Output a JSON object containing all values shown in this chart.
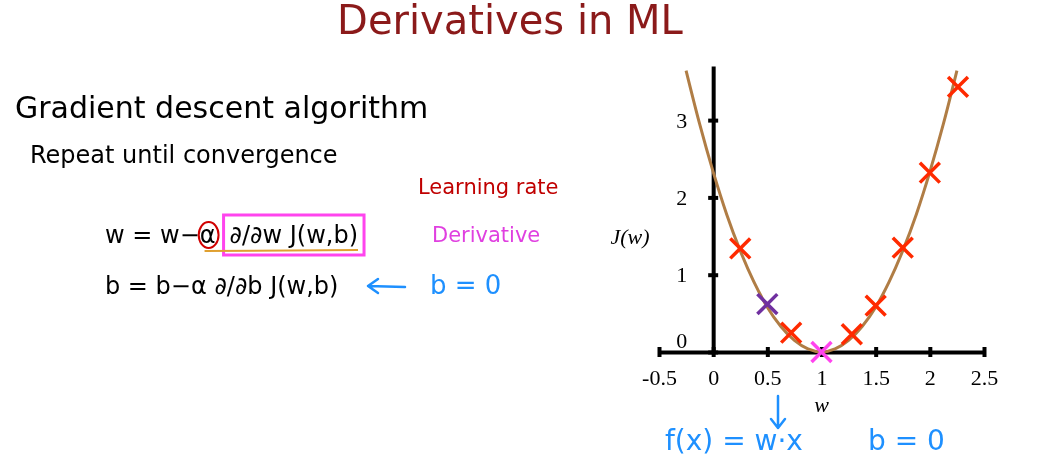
{
  "chart_data": {
    "type": "line",
    "title": "Derivatives in ML",
    "xlabel": "w",
    "ylabel": "J(w)",
    "xlim": [
      -0.5,
      2.5
    ],
    "xticks": [
      -0.5,
      0,
      0.5,
      1,
      1.5,
      2,
      2.5
    ],
    "ylim": [
      0,
      3.7
    ],
    "yticks": [
      0,
      1,
      2,
      3
    ],
    "grid": false,
    "series": [
      {
        "color": "#b07d45",
        "marker": "none",
        "line_style": "solid",
        "x": [
          -0.25,
          -0.125,
          0,
          0.125,
          0.25,
          0.375,
          0.5,
          0.625,
          0.75,
          0.875,
          1,
          1.125,
          1.25,
          1.375,
          1.5,
          1.625,
          1.75,
          1.875,
          2,
          2.125,
          2.25
        ],
        "values": [
          3.64,
          2.95,
          2.33,
          1.78,
          1.31,
          0.91,
          0.58,
          0.33,
          0.15,
          0.04,
          0,
          0.04,
          0.15,
          0.33,
          0.58,
          0.91,
          1.31,
          1.78,
          2.33,
          2.95,
          3.64
        ]
      },
      {
        "type": "scatter",
        "color": "#ff2a00",
        "marker": "cross",
        "x": [
          0.25,
          0.72,
          1.28,
          1.5,
          1.75,
          2,
          2.26
        ],
        "values": [
          1.34,
          0.25,
          0.23,
          0.6,
          1.35,
          2.32,
          3.43
        ]
      },
      {
        "type": "scatter",
        "color": "#7030a0",
        "marker": "cross",
        "x": [
          0.5
        ],
        "values": [
          0.62
        ]
      },
      {
        "type": "scatter",
        "color": "#ff44ee",
        "marker": "cross",
        "x": [
          1
        ],
        "values": [
          0
        ]
      }
    ],
    "annotations": [
      "Gradient descent algorithm",
      "Repeat until convergence",
      "Learning rate",
      "Derivative",
      "w = w−α",
      "∂/∂w J(w,b)",
      "b = b−α ∂/∂b J(w,b)",
      "b = 0",
      "f(x) = w·x",
      "b = 0"
    ]
  }
}
